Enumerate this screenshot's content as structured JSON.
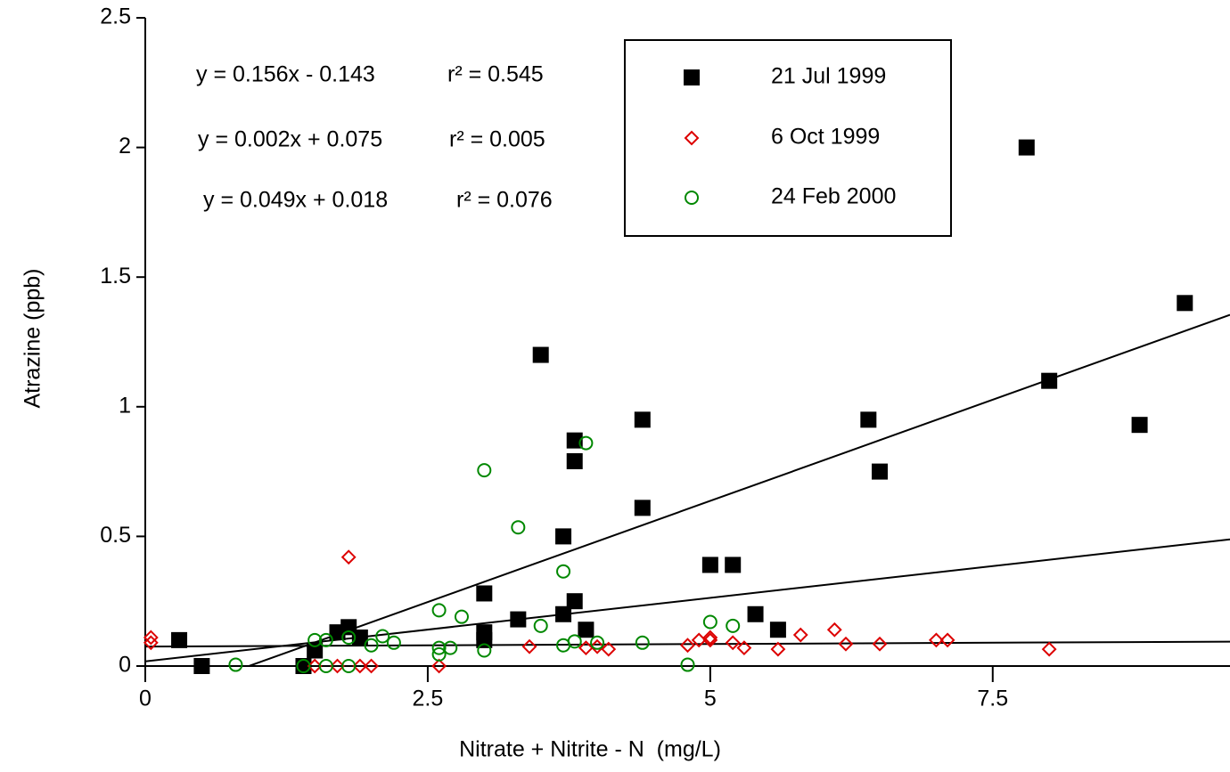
{
  "chart_data": {
    "type": "scatter",
    "x_label": "Nitrate + Nitrite - N  (mg/L)",
    "y_label": "Atrazine (ppb)",
    "xlim": [
      0,
      9.6
    ],
    "ylim": [
      0,
      2.5
    ],
    "xticks": [
      0,
      2.5,
      5,
      7.5
    ],
    "yticks": [
      0,
      0.5,
      1,
      1.5,
      2,
      2.5
    ],
    "series": [
      {
        "name": "21 Jul 1999",
        "color": "#000000",
        "marker": "square",
        "filled": true,
        "x": [
          0.3,
          0.5,
          1.4,
          1.5,
          1.7,
          1.8,
          1.9,
          3.0,
          3.0,
          3.0,
          3.3,
          3.5,
          3.7,
          3.7,
          3.8,
          3.8,
          3.8,
          3.9,
          4.4,
          4.4,
          5.0,
          5.2,
          5.4,
          5.6,
          6.4,
          6.5,
          7.8,
          8.0,
          8.8,
          9.2
        ],
        "values": [
          0.1,
          0,
          0,
          0.06,
          0.13,
          0.15,
          0.11,
          0.28,
          0.13,
          0.1,
          0.18,
          1.2,
          0.5,
          0.2,
          0.87,
          0.79,
          0.25,
          0.14,
          0.95,
          0.61,
          0.39,
          0.39,
          0.2,
          0.14,
          0.95,
          0.75,
          2.0,
          1.1,
          0.93,
          1.4
        ],
        "fit": {
          "slope": 0.156,
          "intercept": -0.143,
          "equation": "y = 0.156x - 0.143",
          "r2_label": "r² = 0.545"
        }
      },
      {
        "name": "6 Oct 1999",
        "color": "#dd0000",
        "marker": "diamond",
        "filled": false,
        "x": [
          0.05,
          0.05,
          1.5,
          1.7,
          1.8,
          1.9,
          2.0,
          2.6,
          3.4,
          3.9,
          4.0,
          4.1,
          4.8,
          4.9,
          5.0,
          5.0,
          5.2,
          5.3,
          5.6,
          5.8,
          6.1,
          6.2,
          6.5,
          7.0,
          7.1,
          8.0
        ],
        "values": [
          0.11,
          0.09,
          0,
          0,
          0.42,
          0,
          0,
          0,
          0.075,
          0.07,
          0.075,
          0.065,
          0.08,
          0.1,
          0.11,
          0.1,
          0.09,
          0.07,
          0.065,
          0.12,
          0.14,
          0.085,
          0.085,
          0.1,
          0.1,
          0.065
        ],
        "fit": {
          "slope": 0.002,
          "intercept": 0.075,
          "equation": "y = 0.002x + 0.075",
          "r2_label": "r² = 0.005"
        }
      },
      {
        "name": "24 Feb 2000",
        "color": "#008800",
        "marker": "circle",
        "filled": false,
        "x": [
          0.8,
          1.4,
          1.5,
          1.6,
          1.6,
          1.8,
          1.8,
          2.0,
          2.1,
          2.2,
          2.6,
          2.6,
          2.6,
          2.7,
          2.8,
          3.0,
          3.0,
          3.3,
          3.5,
          3.7,
          3.7,
          3.8,
          3.9,
          4.0,
          4.4,
          4.8,
          5.0,
          5.2
        ],
        "values": [
          0.005,
          0,
          0.1,
          0,
          0.1,
          0,
          0.11,
          0.08,
          0.115,
          0.09,
          0.215,
          0.07,
          0.045,
          0.07,
          0.19,
          0.755,
          0.06,
          0.535,
          0.155,
          0.365,
          0.08,
          0.095,
          0.86,
          0.09,
          0.09,
          0.005,
          0.17,
          0.155
        ],
        "fit": {
          "slope": 0.049,
          "intercept": 0.018,
          "equation": "y = 0.049x + 0.018",
          "r2_label": "r² = 0.076"
        }
      }
    ]
  }
}
